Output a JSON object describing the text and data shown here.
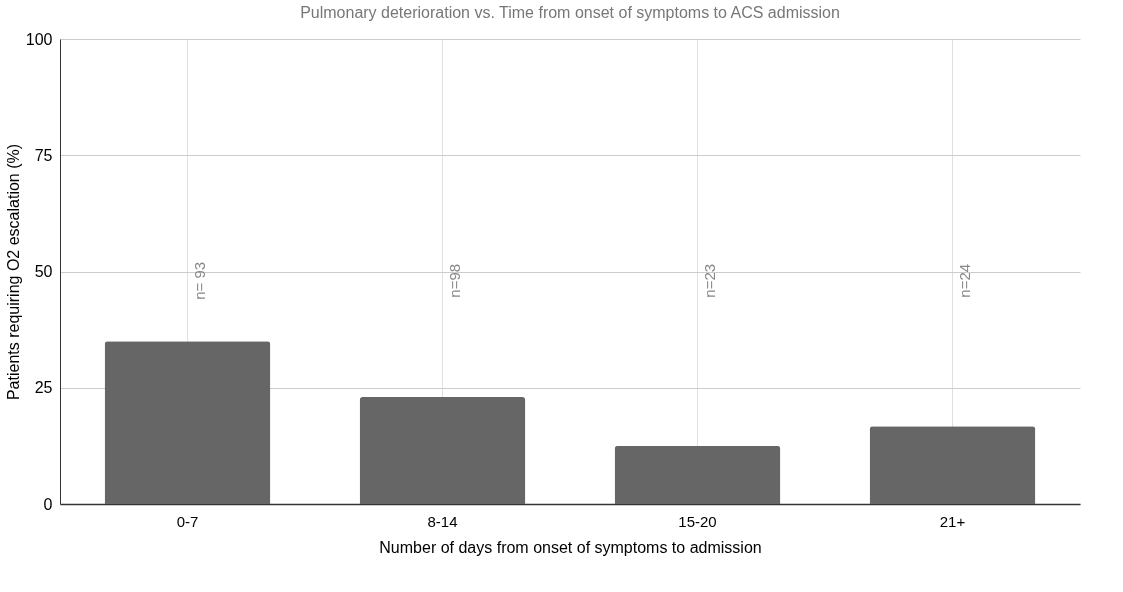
{
  "chart_data": {
    "type": "bar",
    "title": "Pulmonary deterioration vs. Time from onset of symptoms to ACS admission",
    "xlabel": "Number of days from onset of symptoms to admission",
    "ylabel": "Patients requiring O2 escalation (%)",
    "categories": [
      "0-7",
      "8-14",
      "15-20",
      "21+"
    ],
    "values": [
      35,
      23,
      12.5,
      16.7
    ],
    "color": "#666666",
    "ylim": [
      0,
      100
    ],
    "yticks": [
      0,
      25,
      50,
      75,
      100
    ],
    "grid": true,
    "annotations": [
      "n= 93",
      "n=98",
      "n=23",
      "n=24"
    ]
  }
}
